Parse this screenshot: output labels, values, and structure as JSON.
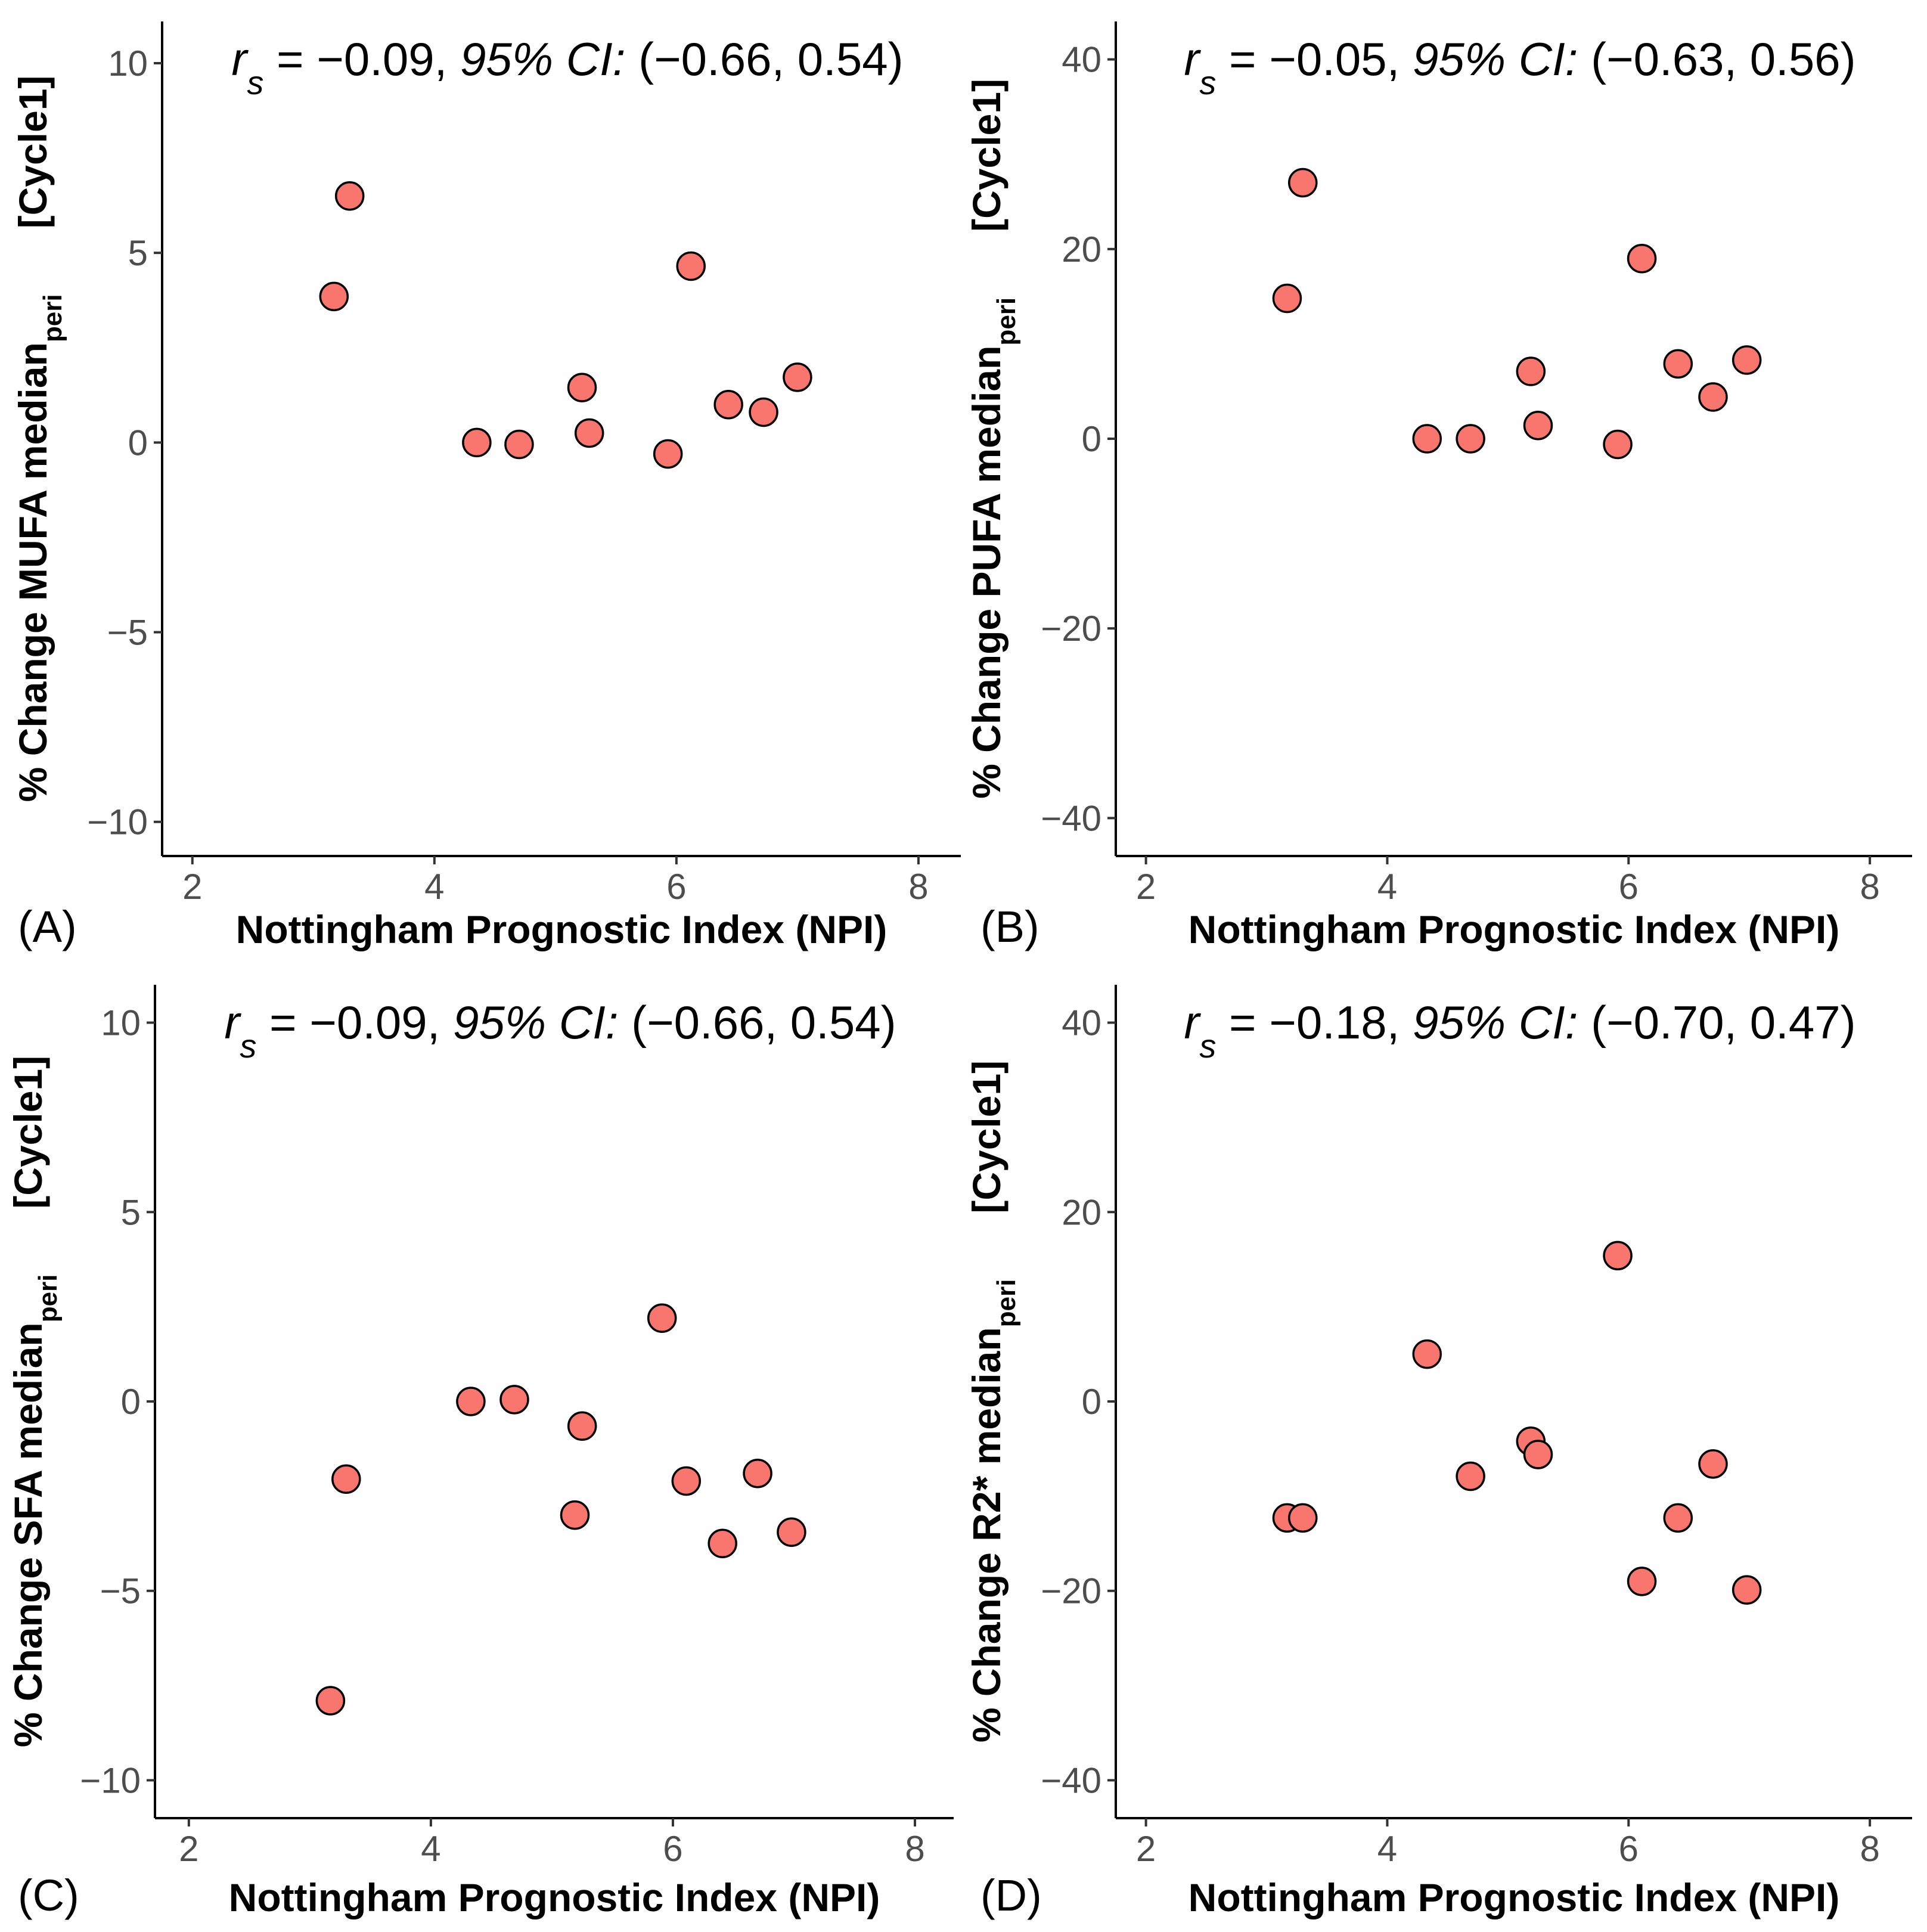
{
  "chart_data": [
    {
      "type": "scatter",
      "panel": "(A)",
      "annotation": {
        "r": "r",
        "sub": "s",
        "stat": " = −0.09, ",
        "ci_label": "95% CI:",
        "ci": " (−0.66, 0.54)"
      },
      "xlabel": "Nottingham Prognostic Index (NPI)",
      "ylabel": {
        "main": "% Change MUFA median",
        "sub": "peri",
        "suffix": "[Cycle1]"
      },
      "xlim": [
        1.75,
        8.35
      ],
      "ylim": [
        -10.9,
        11.1
      ],
      "xticks": [
        2,
        4,
        6,
        8
      ],
      "yticks": [
        -10,
        -5,
        0,
        5,
        10
      ],
      "point_color": "#F8766D",
      "x": [
        3.17,
        3.3,
        4.35,
        4.7,
        5.22,
        5.28,
        5.93,
        6.12,
        6.43,
        6.72,
        7.0
      ],
      "y": [
        3.85,
        6.5,
        0.0,
        -0.05,
        1.45,
        0.25,
        -0.3,
        4.65,
        1.0,
        0.8,
        1.72
      ]
    },
    {
      "type": "scatter",
      "panel": "(B)",
      "annotation": {
        "r": "r",
        "sub": "s",
        "stat": " = −0.05, ",
        "ci_label": "95% CI:",
        "ci": " (−0.63, 0.56)"
      },
      "xlabel": "Nottingham Prognostic Index (NPI)",
      "ylabel": {
        "main": "% Change PUFA median",
        "sub": "peri",
        "suffix": "[Cycle1]"
      },
      "xlim": [
        1.75,
        8.35
      ],
      "ylim": [
        -44,
        44
      ],
      "xticks": [
        2,
        4,
        6,
        8
      ],
      "yticks": [
        -40,
        -20,
        0,
        20,
        40
      ],
      "point_color": "#F8766D",
      "x": [
        3.17,
        3.3,
        4.33,
        4.69,
        5.19,
        5.25,
        5.91,
        6.11,
        6.41,
        6.7,
        6.98
      ],
      "y": [
        14.8,
        27.0,
        0.0,
        0.0,
        7.1,
        1.4,
        -0.6,
        19.0,
        7.9,
        4.4,
        8.3
      ]
    },
    {
      "type": "scatter",
      "panel": "(C)",
      "annotation": {
        "r": "r",
        "sub": "s",
        "stat": " = −0.09, ",
        "ci_label": "95% CI:",
        "ci": " (−0.66, 0.54)"
      },
      "xlabel": "Nottingham Prognostic Index (NPI)",
      "ylabel": {
        "main": "% Change SFA median",
        "sub": "peri",
        "suffix": "[Cycle1]"
      },
      "xlim": [
        1.72,
        8.32
      ],
      "ylim": [
        -11.0,
        11.0
      ],
      "xticks": [
        2,
        4,
        6,
        8
      ],
      "yticks": [
        -10,
        -5,
        0,
        5,
        10
      ],
      "point_color": "#F8766D",
      "x": [
        3.17,
        3.3,
        4.33,
        4.69,
        5.19,
        5.25,
        5.91,
        6.11,
        6.41,
        6.7,
        6.98
      ],
      "y": [
        -7.9,
        -2.05,
        0.0,
        0.05,
        -3.0,
        -0.65,
        2.2,
        -2.1,
        -3.75,
        -1.9,
        -3.45
      ]
    },
    {
      "type": "scatter",
      "panel": "(D)",
      "annotation": {
        "r": "r",
        "sub": "s",
        "stat": " = −0.18, ",
        "ci_label": "95% CI:",
        "ci": " (−0.70, 0.47)"
      },
      "xlabel": "Nottingham Prognostic Index (NPI)",
      "ylabel": {
        "main": "% Change R2* median",
        "sub": "peri",
        "suffix": "[Cycle1]"
      },
      "xlim": [
        1.75,
        8.35
      ],
      "ylim": [
        -44,
        44
      ],
      "xticks": [
        2,
        4,
        6,
        8
      ],
      "yticks": [
        -40,
        -20,
        0,
        20,
        40
      ],
      "point_color": "#F8766D",
      "x": [
        3.17,
        3.3,
        4.33,
        4.69,
        5.19,
        5.25,
        5.91,
        6.11,
        6.41,
        6.7,
        6.98
      ],
      "y": [
        -12.3,
        -12.3,
        5.0,
        -7.9,
        -4.2,
        -5.6,
        15.4,
        -19.0,
        -12.3,
        -6.6,
        -19.9
      ]
    }
  ]
}
